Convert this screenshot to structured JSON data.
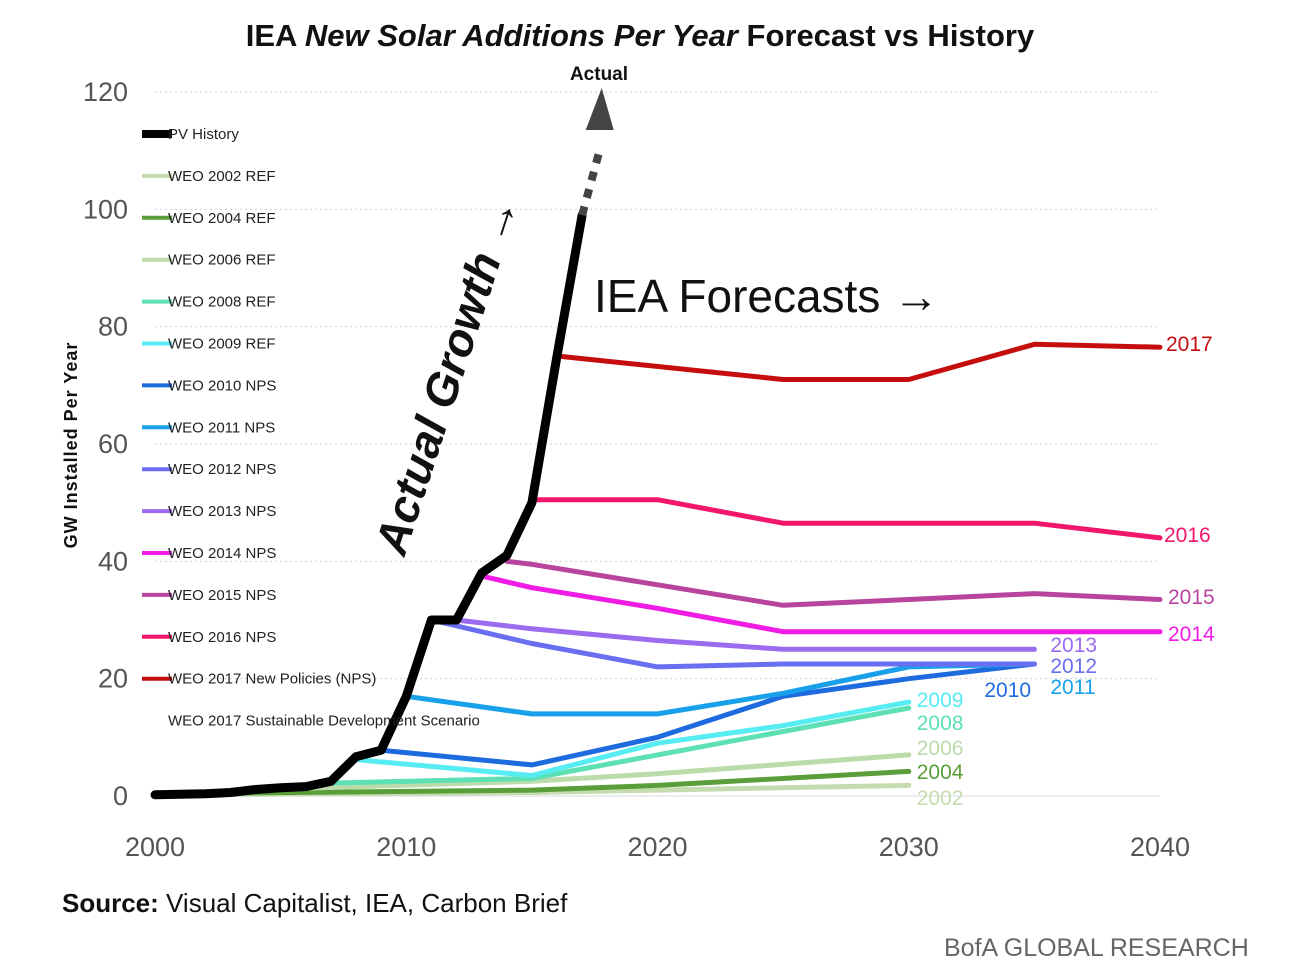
{
  "chart_data": {
    "type": "line",
    "title_parts": [
      {
        "text": "IEA ",
        "italic": false
      },
      {
        "text": "New Solar Additions Per Year",
        "italic": true
      },
      {
        "text": " Forecast vs History",
        "italic": false
      }
    ],
    "ylabel": "GW Installed Per Year",
    "xlabel": "",
    "xlim": [
      2000,
      2040
    ],
    "ylim": [
      0,
      120
    ],
    "xticks": [
      2000,
      2010,
      2020,
      2030,
      2040
    ],
    "yticks": [
      0,
      20,
      40,
      60,
      80,
      100,
      120
    ],
    "grid": "horizontal dashed",
    "legend_position": "top-left",
    "history": {
      "name": "PV History",
      "color": "#000000",
      "points": [
        [
          2000,
          0.2
        ],
        [
          2001,
          0.3
        ],
        [
          2002,
          0.4
        ],
        [
          2003,
          0.6
        ],
        [
          2004,
          1.1
        ],
        [
          2005,
          1.4
        ],
        [
          2006,
          1.6
        ],
        [
          2007,
          2.5
        ],
        [
          2008,
          6.7
        ],
        [
          2009,
          7.8
        ],
        [
          2010,
          17
        ],
        [
          2011,
          30
        ],
        [
          2012,
          30
        ],
        [
          2013,
          38
        ],
        [
          2014,
          41
        ],
        [
          2015,
          50
        ],
        [
          2016,
          75
        ],
        [
          2017,
          99
        ]
      ]
    },
    "series": [
      {
        "name": "WEO 2002 REF",
        "end_label": "2002",
        "color": "#c5dcb0",
        "points": [
          [
            2000,
            0.2
          ],
          [
            2015,
            0.6
          ],
          [
            2020,
            1.0
          ],
          [
            2030,
            1.8
          ]
        ]
      },
      {
        "name": "WEO 2004 REF",
        "end_label": "2004",
        "color": "#5a9e3a",
        "points": [
          [
            2003,
            0.5
          ],
          [
            2015,
            1.0
          ],
          [
            2020,
            1.8
          ],
          [
            2030,
            4.2
          ]
        ]
      },
      {
        "name": "WEO 2006 REF",
        "end_label": "2006",
        "color": "#bcdbab",
        "points": [
          [
            2005,
            1.2
          ],
          [
            2015,
            2.5
          ],
          [
            2020,
            3.8
          ],
          [
            2030,
            7.0
          ]
        ]
      },
      {
        "name": "WEO 2008 REF",
        "end_label": "2008",
        "color": "#5ce0b4",
        "points": [
          [
            2007,
            2.2
          ],
          [
            2015,
            3.0
          ],
          [
            2020,
            7.0
          ],
          [
            2025,
            11
          ],
          [
            2030,
            15
          ]
        ]
      },
      {
        "name": "WEO 2009 REF",
        "end_label": "2009",
        "color": "#55ecf2",
        "points": [
          [
            2008,
            6.2
          ],
          [
            2015,
            3.5
          ],
          [
            2020,
            9.0
          ],
          [
            2025,
            12
          ],
          [
            2030,
            16
          ]
        ]
      },
      {
        "name": "WEO 2010 NPS",
        "end_label": "2010",
        "color": "#1e6be0",
        "points": [
          [
            2009,
            7.8
          ],
          [
            2015,
            5.3
          ],
          [
            2020,
            10
          ],
          [
            2025,
            17
          ],
          [
            2030,
            20
          ],
          [
            2035,
            22.5
          ]
        ]
      },
      {
        "name": "WEO 2011 NPS",
        "end_label": "2011",
        "color": "#19a0ea",
        "points": [
          [
            2010,
            17
          ],
          [
            2015,
            14
          ],
          [
            2020,
            14
          ],
          [
            2025,
            17.5
          ],
          [
            2030,
            22
          ],
          [
            2035,
            22.5
          ]
        ]
      },
      {
        "name": "WEO 2012 NPS",
        "end_label": "2012",
        "color": "#6a6ef0",
        "points": [
          [
            2011,
            30
          ],
          [
            2015,
            26
          ],
          [
            2020,
            22
          ],
          [
            2025,
            22.5
          ],
          [
            2030,
            22.5
          ],
          [
            2035,
            22.5
          ]
        ]
      },
      {
        "name": "WEO 2013 NPS",
        "end_label": "2013",
        "color": "#9b6bf0",
        "points": [
          [
            2012,
            30
          ],
          [
            2015,
            28.5
          ],
          [
            2020,
            26.5
          ],
          [
            2025,
            25
          ],
          [
            2030,
            25
          ],
          [
            2035,
            25
          ]
        ]
      },
      {
        "name": "WEO 2014 NPS",
        "end_label": "2014",
        "color": "#f01ce5",
        "points": [
          [
            2013,
            37.5
          ],
          [
            2015,
            35.5
          ],
          [
            2020,
            32
          ],
          [
            2025,
            28
          ],
          [
            2030,
            28
          ],
          [
            2040,
            28
          ]
        ]
      },
      {
        "name": "WEO 2015 NPS",
        "end_label": "2015",
        "color": "#b8449e",
        "points": [
          [
            2014,
            40
          ],
          [
            2015,
            39.5
          ],
          [
            2020,
            36
          ],
          [
            2025,
            32.5
          ],
          [
            2030,
            33.5
          ],
          [
            2035,
            34.5
          ],
          [
            2040,
            33.5
          ]
        ]
      },
      {
        "name": "WEO 2016 NPS",
        "end_label": "2016",
        "color": "#f2176b",
        "points": [
          [
            2015,
            50.5
          ],
          [
            2020,
            50.5
          ],
          [
            2025,
            46.5
          ],
          [
            2030,
            46.5
          ],
          [
            2035,
            46.5
          ],
          [
            2040,
            44
          ]
        ]
      },
      {
        "name": "WEO 2017 New Policies (NPS)",
        "end_label": "2017",
        "color": "#c50d0d",
        "points": [
          [
            2016,
            75
          ],
          [
            2025,
            71
          ],
          [
            2030,
            71
          ],
          [
            2035,
            77
          ],
          [
            2040,
            76.5
          ]
        ]
      }
    ],
    "legend_extra": "WEO 2017 Sustainable Development Scenario",
    "annotations": {
      "actual_growth": "Actual Growth",
      "iea_forecasts": "IEA Forecasts",
      "actual": "Actual",
      "arrow": "→"
    }
  },
  "footer": {
    "source_label": "Source:",
    "source_text": "Visual Capitalist, IEA, Carbon Brief",
    "brand": "BofA GLOBAL RESEARCH"
  }
}
